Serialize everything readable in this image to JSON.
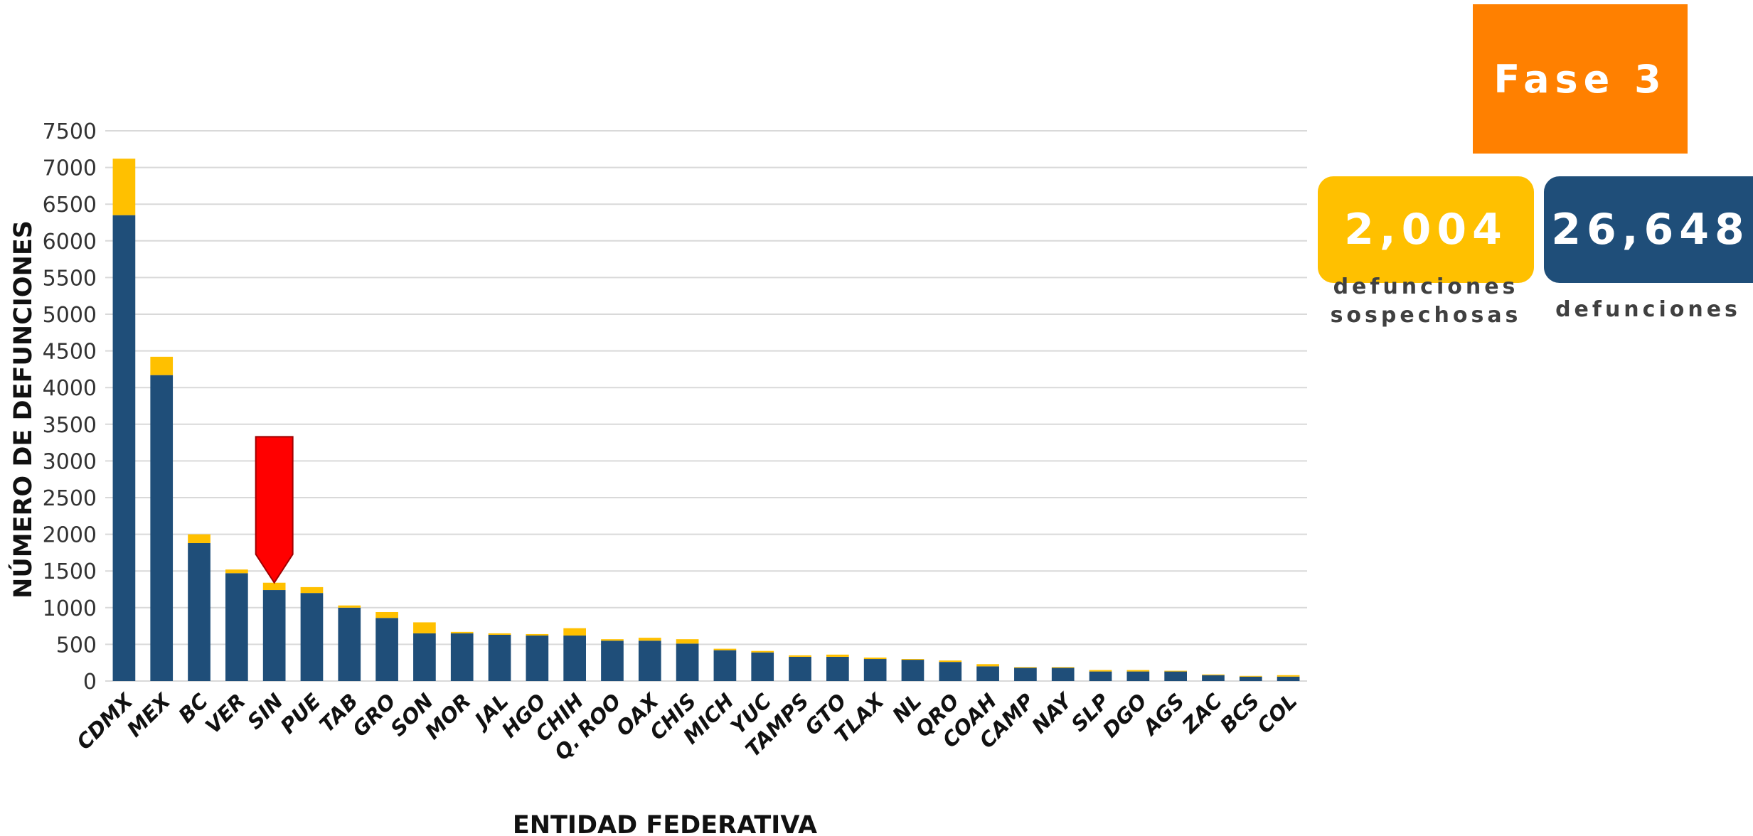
{
  "chart_data": {
    "type": "bar",
    "stacked": true,
    "ylabel": "NÚMERO DE DEFUNCIONES",
    "xlabel": "ENTIDAD FEDERATIVA",
    "ylim": [
      0,
      7500
    ],
    "yticks": [
      0,
      500,
      1000,
      1500,
      2000,
      2500,
      3000,
      3500,
      4000,
      4500,
      5000,
      5500,
      6000,
      6500,
      7000,
      7500
    ],
    "grid": true,
    "categories": [
      "CDMX",
      "MEX",
      "BC",
      "VER",
      "SIN",
      "PUE",
      "TAB",
      "GRO",
      "SON",
      "MOR",
      "JAL",
      "HGO",
      "CHIH",
      "Q. ROO",
      "OAX",
      "CHIS",
      "MICH",
      "YUC",
      "TAMPS",
      "GTO",
      "TLAX",
      "NL",
      "QRO",
      "COAH",
      "CAMP",
      "NAY",
      "SLP",
      "DGO",
      "AGS",
      "ZAC",
      "BCS",
      "COL"
    ],
    "series": [
      {
        "color": "#1f4e79",
        "values": [
          6350,
          4170,
          1880,
          1470,
          1240,
          1200,
          1000,
          860,
          650,
          650,
          630,
          620,
          620,
          550,
          550,
          510,
          420,
          390,
          330,
          330,
          300,
          290,
          260,
          200,
          180,
          180,
          130,
          130,
          130,
          80,
          60,
          60
        ]
      },
      {
        "color": "#ffc000",
        "values": [
          770,
          250,
          120,
          50,
          100,
          80,
          30,
          80,
          150,
          20,
          20,
          20,
          100,
          20,
          40,
          60,
          20,
          20,
          20,
          30,
          20,
          10,
          20,
          30,
          10,
          10,
          20,
          20,
          10,
          10,
          10,
          20
        ]
      }
    ],
    "annotation": {
      "type": "arrow",
      "category": "SIN",
      "color": "#ff0000",
      "from_value": 3330,
      "to_value": 1340
    }
  },
  "phase_label": "Fase 3",
  "stats": {
    "suspect": {
      "value": "2,004",
      "caption_line1": "defunciones",
      "caption_line2": "sospechosas"
    },
    "deaths": {
      "value": "26,648",
      "caption": "defunciones"
    }
  },
  "colors": {
    "confirmed": "#1f4e79",
    "suspect": "#ffc000",
    "phase": "#ff8000",
    "grid": "#d9d9d9",
    "arrow": "#ff0000"
  }
}
